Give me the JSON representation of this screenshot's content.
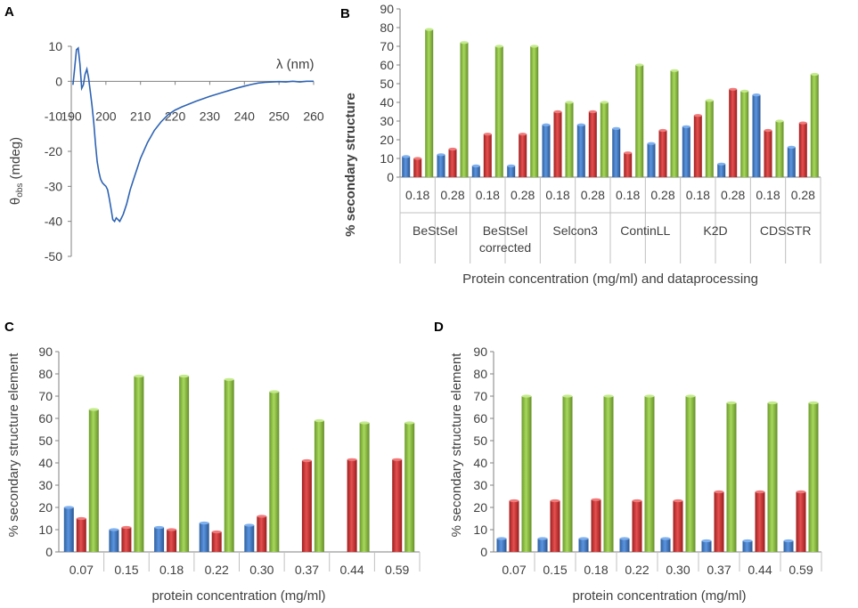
{
  "panels": {
    "a": "A",
    "b": "B",
    "c": "C",
    "d": "D"
  },
  "colors": {
    "series1": "#4a7fc9",
    "series2": "#d23a3a",
    "series3": "#92c24a",
    "line": "#2e63b3",
    "axis": "#808080",
    "text": "#404040"
  },
  "chart_data": [
    {
      "panel": "A",
      "type": "line",
      "xlabel": "λ (nm)",
      "ylabel": "θobs (mdeg)",
      "ylabel_main": "θ",
      "ylabel_sub": "obs",
      "ylabel_unit": " (mdeg)",
      "xlim": [
        190,
        260
      ],
      "ylim": [
        -50,
        10
      ],
      "xticks": [
        "190",
        "200",
        "210",
        "220",
        "230",
        "240",
        "250",
        "260"
      ],
      "yticks": [
        "10",
        "0",
        "-10",
        "-20",
        "-30",
        "-40",
        "-50"
      ],
      "x": [
        190.5,
        191,
        191.5,
        192,
        192.5,
        193,
        193.5,
        194,
        194.5,
        195,
        195.5,
        196,
        196.5,
        197,
        197.5,
        198,
        198.5,
        199,
        199.5,
        200,
        200.5,
        201,
        201.5,
        202,
        202.5,
        203,
        203.5,
        204,
        205,
        206,
        207,
        208,
        210,
        212,
        214,
        216,
        218,
        220,
        222,
        224,
        226,
        228,
        230,
        232,
        234,
        236,
        238,
        240,
        242,
        244,
        246,
        248,
        250,
        252,
        254,
        256,
        258,
        260
      ],
      "y": [
        -1,
        4,
        9,
        9.5,
        5,
        -2,
        -1,
        2,
        3.5,
        1,
        -3,
        -7,
        -12,
        -18,
        -23,
        -26,
        -28,
        -29,
        -29.5,
        -30,
        -31,
        -33.5,
        -36.5,
        -39.5,
        -40,
        -39,
        -39.5,
        -40,
        -38,
        -35,
        -31,
        -28,
        -22,
        -17.5,
        -14,
        -11.5,
        -9.5,
        -8.2,
        -7.3,
        -6.5,
        -5.7,
        -5,
        -4.3,
        -3.7,
        -3.1,
        -2.5,
        -1.9,
        -1.4,
        -0.9,
        -0.5,
        -0.3,
        -0.2,
        -0.1,
        -0.2,
        0,
        -0.2,
        0,
        0
      ]
    },
    {
      "panel": "B",
      "type": "bar",
      "ylabel": "% secondary structure",
      "xlabel": "Protein concentration (mg/ml) and dataprocessing",
      "ylim": [
        0,
        90
      ],
      "yticks": [
        "0",
        "10",
        "20",
        "30",
        "40",
        "50",
        "60",
        "70",
        "80",
        "90"
      ],
      "categories": [
        "0.18",
        "0.28",
        "0.18",
        "0.28",
        "0.18",
        "0.28",
        "0.18",
        "0.28",
        "0.18",
        "0.28",
        "0.18",
        "0.28"
      ],
      "groups": [
        {
          "label": [
            "BeStSel"
          ]
        },
        {
          "label": [
            "BeStSel",
            "corrected"
          ]
        },
        {
          "label": [
            "Selcon3"
          ]
        },
        {
          "label": [
            "ContinLL"
          ]
        },
        {
          "label": [
            "K2D"
          ]
        },
        {
          "label": [
            "CDSSTR"
          ]
        }
      ],
      "series": [
        {
          "values": [
            11,
            12,
            6,
            6,
            28,
            28,
            26,
            18,
            27,
            7,
            44,
            16
          ]
        },
        {
          "values": [
            10,
            15,
            23,
            23,
            35,
            35,
            13,
            25,
            33,
            47,
            25,
            29
          ]
        },
        {
          "values": [
            79,
            72,
            70,
            70,
            40,
            40,
            60,
            57,
            41,
            46,
            30,
            55
          ]
        }
      ]
    },
    {
      "panel": "C",
      "type": "bar",
      "ylabel": "% secondary structure element",
      "xlabel": "protein concentration (mg/ml)",
      "ylim": [
        0,
        90
      ],
      "yticks": [
        "0",
        "10",
        "20",
        "30",
        "40",
        "50",
        "60",
        "70",
        "80",
        "90"
      ],
      "categories": [
        "0.07",
        "0.15",
        "0.18",
        "0.22",
        "0.30",
        "0.37",
        "0.44",
        "0.59"
      ],
      "series": [
        {
          "values": [
            20,
            10,
            11,
            13,
            12,
            0,
            0,
            0
          ]
        },
        {
          "values": [
            15,
            11,
            10,
            9,
            16,
            41,
            41.5,
            41.5
          ]
        },
        {
          "values": [
            64,
            79,
            79,
            77.5,
            72,
            59,
            58,
            58
          ]
        }
      ]
    },
    {
      "panel": "D",
      "type": "bar",
      "ylabel": "% secondary structure element",
      "xlabel": "protein concentration (mg/ml)",
      "ylim": [
        0,
        90
      ],
      "yticks": [
        "0",
        "10",
        "20",
        "30",
        "40",
        "50",
        "60",
        "70",
        "80",
        "90"
      ],
      "categories": [
        "0.07",
        "0.15",
        "0.18",
        "0.22",
        "0.30",
        "0.37",
        "0.44",
        "0.59"
      ],
      "series": [
        {
          "values": [
            6,
            6,
            6,
            6,
            6,
            5,
            5,
            5
          ]
        },
        {
          "values": [
            23,
            23,
            23.5,
            23,
            23,
            27,
            27,
            27
          ]
        },
        {
          "values": [
            70,
            70,
            70,
            70,
            70,
            67,
            67,
            67
          ]
        }
      ]
    }
  ]
}
